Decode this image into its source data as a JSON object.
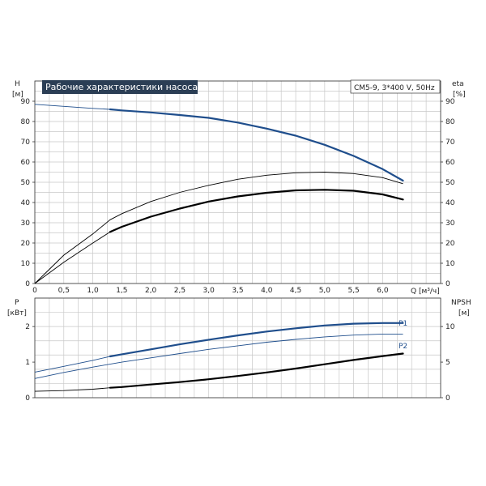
{
  "title": "Рабочие характеристики насоса",
  "model": "CM5-9, 3*400 V, 50Hz",
  "colors": {
    "blue": "#1f4e8c",
    "black": "#000000",
    "title_bg": "#2b3e55",
    "grid": "#c8c8c8"
  },
  "chart_data": [
    {
      "type": "line",
      "name": "head-efficiency",
      "left_axis": {
        "label": "H",
        "unit": "[м]",
        "range": [
          0,
          100
        ],
        "ticks": [
          0,
          10,
          20,
          30,
          40,
          50,
          60,
          70,
          80,
          90
        ]
      },
      "right_axis": {
        "label": "eta",
        "unit": "[%]",
        "range": [
          0,
          100
        ],
        "ticks": [
          0,
          10,
          20,
          30,
          40,
          50,
          60,
          70,
          80,
          90
        ]
      },
      "x_axis": {
        "label": "Q [м³/ч]",
        "range": [
          0,
          7.0
        ],
        "ticks": [
          "0",
          "0,5",
          "1,0",
          "1,5",
          "2,0",
          "2,5",
          "3,0",
          "3,5",
          "4,0",
          "4,5",
          "5,0",
          "5,5",
          "6,0"
        ]
      },
      "series": [
        {
          "axis": "left",
          "color": "#1f4e8c",
          "bold_from": 1.3,
          "x": [
            0,
            0.5,
            1.0,
            1.3,
            1.5,
            2.0,
            2.5,
            3.0,
            3.5,
            4.0,
            4.5,
            5.0,
            5.5,
            6.0,
            6.35
          ],
          "y": [
            88.5,
            87.5,
            86.5,
            86,
            85.5,
            84.5,
            83.2,
            81.8,
            79.5,
            76.5,
            73,
            68.5,
            63,
            56.5,
            50.8
          ]
        },
        {
          "axis": "right",
          "color": "#000000",
          "bold_from": 1.3,
          "x": [
            0,
            0.5,
            1.0,
            1.3,
            1.5,
            2.0,
            2.5,
            3.0,
            3.5,
            4.0,
            4.5,
            5.0,
            5.5,
            6.0,
            6.35
          ],
          "y": [
            0,
            10.5,
            20,
            25.5,
            28,
            33,
            37,
            40.5,
            43,
            44.8,
            46,
            46.3,
            45.8,
            44,
            41.5
          ]
        },
        {
          "axis": "right",
          "color": "#000000",
          "thin": true,
          "x": [
            0,
            0.5,
            1.0,
            1.3,
            1.5,
            2.0,
            2.5,
            3.0,
            3.5,
            4.0,
            4.5,
            5.0,
            5.5,
            6.0,
            6.35
          ],
          "y": [
            0,
            14,
            24.5,
            31.5,
            34.5,
            40.5,
            45,
            48.5,
            51.5,
            53.5,
            54.7,
            55,
            54.3,
            52.3,
            49.3
          ]
        }
      ]
    },
    {
      "type": "line",
      "name": "power-npsh",
      "left_axis": {
        "label": "P",
        "unit": "[кВт]",
        "range": [
          0,
          2.8
        ],
        "ticks": [
          0,
          1,
          2
        ]
      },
      "right_axis": {
        "label": "NPSH",
        "unit": "[м]",
        "range": [
          0,
          14
        ],
        "ticks": [
          0,
          5,
          10
        ]
      },
      "x_axis": {
        "range": [
          0,
          7.0
        ]
      },
      "series": [
        {
          "name": "P1",
          "axis": "left",
          "color": "#1f4e8c",
          "bold_from": 1.3,
          "x": [
            0,
            0.5,
            1.0,
            1.3,
            1.5,
            2.0,
            2.5,
            3.0,
            3.5,
            4.0,
            4.5,
            5.0,
            5.5,
            6.0,
            6.35
          ],
          "y": [
            0.72,
            0.88,
            1.05,
            1.16,
            1.22,
            1.36,
            1.5,
            1.63,
            1.75,
            1.86,
            1.95,
            2.03,
            2.08,
            2.1,
            2.1
          ]
        },
        {
          "name": "P2",
          "axis": "left",
          "color": "#1f4e8c",
          "thin": true,
          "x": [
            0,
            0.5,
            1.0,
            1.5,
            2.0,
            2.5,
            3.0,
            3.5,
            4.0,
            4.5,
            5.0,
            5.5,
            6.0,
            6.35
          ],
          "y": [
            0.54,
            0.71,
            0.86,
            1.0,
            1.12,
            1.24,
            1.36,
            1.46,
            1.56,
            1.64,
            1.71,
            1.76,
            1.79,
            1.79
          ]
        },
        {
          "axis": "right",
          "color": "#000000",
          "bold_from": 1.3,
          "x": [
            0,
            0.5,
            1.0,
            1.3,
            1.5,
            2.0,
            2.5,
            3.0,
            3.5,
            4.0,
            4.5,
            5.0,
            5.5,
            6.0,
            6.35
          ],
          "y": [
            0.9,
            1.0,
            1.2,
            1.4,
            1.5,
            1.85,
            2.2,
            2.6,
            3.05,
            3.55,
            4.1,
            4.7,
            5.3,
            5.85,
            6.2
          ]
        }
      ]
    }
  ]
}
